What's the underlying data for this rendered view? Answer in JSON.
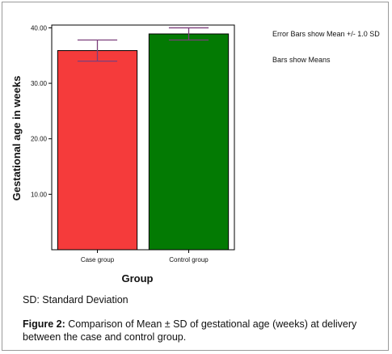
{
  "chart_data": {
    "type": "bar",
    "categories": [
      "Case group",
      "Control group"
    ],
    "values": [
      35.9,
      38.9
    ],
    "error": [
      {
        "low": 34.0,
        "high": 37.8
      },
      {
        "low": 37.8,
        "high": 40.0
      }
    ],
    "bar_colors": [
      "#f53b3b",
      "#037a03"
    ],
    "xlabel": "Group",
    "ylabel": "Gestational age in weeks",
    "ylim": [
      0,
      40.5
    ],
    "yticks": [
      10.0,
      20.0,
      30.0,
      40.0
    ],
    "ytick_labels": [
      "10.00",
      "20.00",
      "30.00",
      "40.00"
    ],
    "grid": false,
    "annotations": [
      "Error Bars show Mean +/- 1.0 SD",
      "Bars show Means"
    ]
  },
  "note": "SD: Standard Deviation",
  "caption": {
    "label": "Figure 2:",
    "text": " Comparison of Mean ± SD of gestational age (weeks) at delivery between the case and control group."
  },
  "colors": {
    "error_bar": "#7b3f7b",
    "axis": "#000000",
    "frame": "#9a9a9a"
  }
}
